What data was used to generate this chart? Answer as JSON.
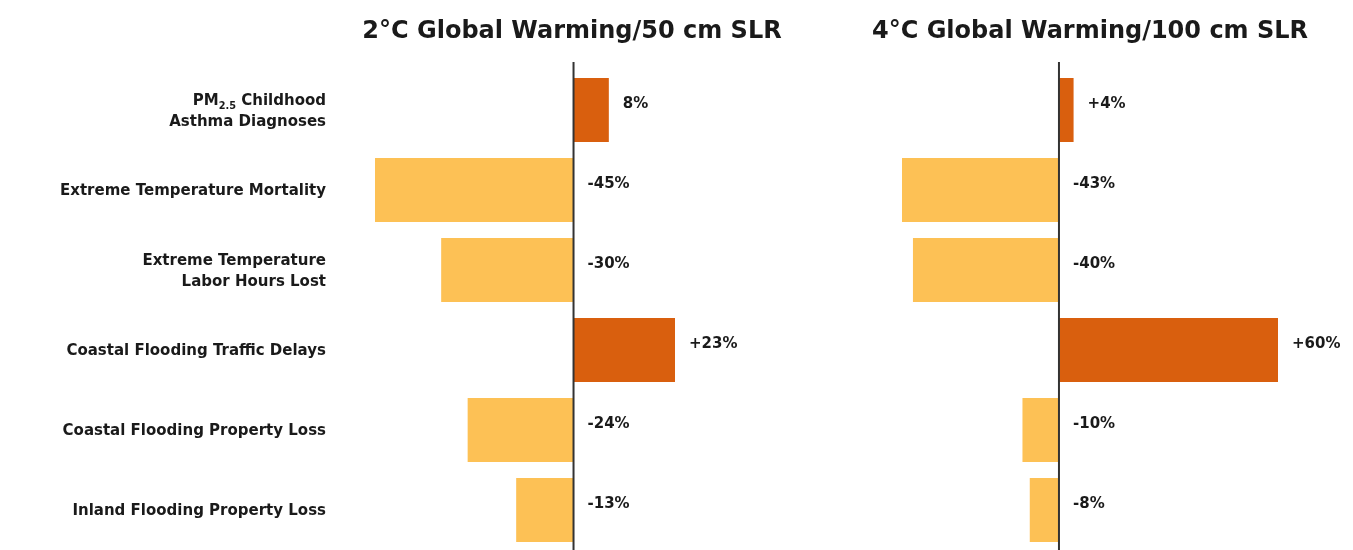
{
  "chart_data": [
    {
      "type": "bar",
      "orientation": "horizontal",
      "title": "2°C Global Warming/50 cm SLR",
      "tick_labels": "y",
      "categories": [
        "PM$_{2.5}$ Childhood\nAsthma Diagnoses",
        "Extreme Temperature Mortality",
        "Extreme Temperature\nLabor Hours Lost",
        "Coastal Flooding Traffic Delays",
        "Coastal Flooding Property Loss",
        "Inland Flooding Property Loss"
      ],
      "values": [
        8,
        -45,
        -30,
        23,
        -24,
        -13
      ],
      "value_labels": [
        "8%",
        "-45%",
        "-30%",
        "+23%",
        "-24%",
        "-13%"
      ],
      "colors": [
        "#d95f0e",
        "#fdc155",
        "#fdc155",
        "#d95f0e",
        "#fdc155",
        "#fdc155"
      ]
    },
    {
      "type": "bar",
      "orientation": "horizontal",
      "title": "4°C Global Warming/100 cm SLR",
      "categories": [
        null,
        null,
        null,
        null,
        null,
        null
      ],
      "values": [
        4,
        -43,
        -40,
        60,
        -10,
        -8
      ],
      "value_labels": [
        "+4%",
        "-43%",
        "-40%",
        "+60%",
        "-10%",
        "-8%"
      ],
      "colors": [
        "#d95f0e",
        "#fdc155",
        "#fdc155",
        "#d95f0e",
        "#fdc155",
        "#fdc155"
      ]
    }
  ]
}
